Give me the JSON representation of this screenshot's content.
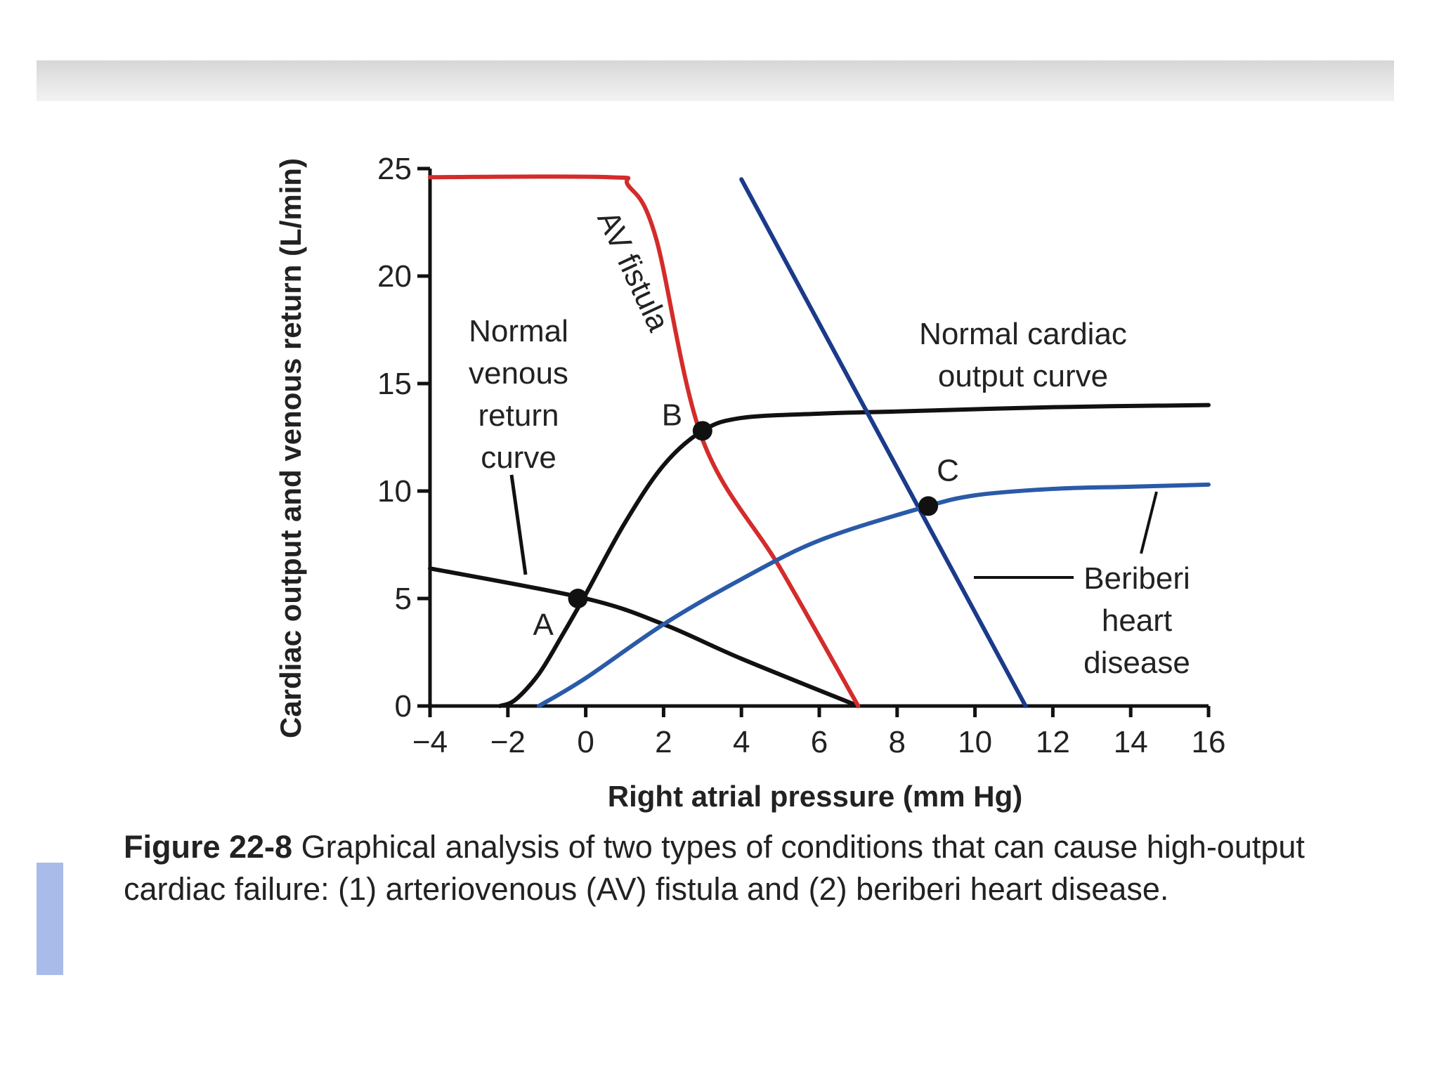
{
  "caption": {
    "figure_label": "Figure 22-8",
    "text": "Graphical analysis of two types of conditions that can cause high-output cardiac failure: (1) arteriovenous (AV) fistula and (2) beriberi heart disease."
  },
  "chart_data": {
    "type": "line",
    "xlabel": "Right atrial pressure (mm Hg)",
    "ylabel": "Cardiac output and venous return (L/min)",
    "xlim": [
      -4,
      16
    ],
    "ylim": [
      0,
      25
    ],
    "x_ticks": [
      -4,
      -2,
      0,
      2,
      4,
      6,
      8,
      10,
      12,
      14,
      16
    ],
    "y_ticks": [
      0,
      5,
      10,
      15,
      20,
      25
    ],
    "grid": false,
    "colors": {
      "black": "#111111",
      "red": "#d42b2b",
      "dark_blue": "#1b3a8a",
      "blue": "#2a5aa8"
    },
    "series": [
      {
        "key": "normal_vr",
        "color_key": "black",
        "x": [
          -4,
          0,
          2,
          4,
          7
        ],
        "y": [
          6.4,
          5.0,
          3.8,
          2.2,
          0
        ]
      },
      {
        "key": "normal_co",
        "color_key": "black",
        "x": [
          -2.2,
          -1.8,
          -1.2,
          -0.6,
          0,
          1,
          2,
          3,
          4,
          6,
          8,
          12,
          16
        ],
        "y": [
          0,
          0.3,
          1.5,
          3.3,
          5.2,
          8.5,
          11.2,
          12.8,
          13.4,
          13.6,
          13.7,
          13.9,
          14.0
        ]
      },
      {
        "key": "av_fistula",
        "color_key": "red",
        "x": [
          -4,
          0.6,
          1.1,
          1.8,
          3,
          5,
          7
        ],
        "y": [
          24.6,
          24.6,
          24.2,
          21.8,
          12.4,
          6.4,
          0
        ]
      },
      {
        "key": "beriberi_vr",
        "color_key": "dark_blue",
        "x": [
          4,
          11.3
        ],
        "y": [
          24.5,
          0
        ]
      },
      {
        "key": "beriberi_co",
        "color_key": "blue",
        "x": [
          -1.2,
          0,
          2,
          4,
          6,
          8.6,
          10,
          12,
          14,
          16
        ],
        "y": [
          0,
          1.3,
          3.8,
          5.9,
          7.7,
          9.2,
          9.8,
          10.1,
          10.2,
          10.3
        ]
      }
    ],
    "points": [
      {
        "label": "A",
        "x": -0.2,
        "y": 5.0
      },
      {
        "label": "B",
        "x": 3.0,
        "y": 12.8
      },
      {
        "label": "C",
        "x": 8.8,
        "y": 9.3
      }
    ],
    "annotations": {
      "normal_venous_return": [
        "Normal",
        "venous",
        "return",
        "curve"
      ],
      "av_fistula": "AV fistula",
      "normal_cardiac_output": [
        "Normal cardiac",
        "output curve"
      ],
      "beriberi": [
        "Beriberi",
        "heart",
        "disease"
      ]
    }
  }
}
